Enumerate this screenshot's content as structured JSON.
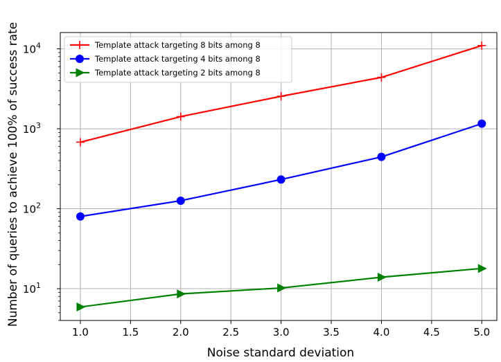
{
  "chart_data": {
    "type": "line",
    "xlabel": "Noise standard deviation",
    "ylabel": "Number of queries to achieve 100% of success rate",
    "yscale": "log",
    "x": [
      1.0,
      2.0,
      3.0,
      4.0,
      5.0
    ],
    "xlim": [
      0.8,
      5.15
    ],
    "ylim": [
      4,
      16000
    ],
    "xticks": [
      "1.0",
      "1.5",
      "2.0",
      "2.5",
      "3.0",
      "3.5",
      "4.0",
      "4.5",
      "5.0"
    ],
    "yticks": [
      {
        "value": 10,
        "base": "10",
        "exp": "1"
      },
      {
        "value": 100,
        "base": "10",
        "exp": "2"
      },
      {
        "value": 1000,
        "base": "10",
        "exp": "3"
      },
      {
        "value": 10000,
        "base": "10",
        "exp": "4"
      }
    ],
    "grid": true,
    "legend_position": "top-left",
    "series": [
      {
        "name": "Template attack targeting 8 bits among 8",
        "color": "#ff0000",
        "marker": "plus",
        "values": [
          680,
          1420,
          2550,
          4400,
          11000
        ]
      },
      {
        "name": "Template attack targeting 4 bits among 8",
        "color": "#0000ff",
        "marker": "circle",
        "values": [
          80,
          126,
          232,
          445,
          1160
        ]
      },
      {
        "name": "Template attack targeting 2 bits among 8",
        "color": "#008000",
        "marker": "triangle-right",
        "values": [
          5.9,
          8.6,
          10.2,
          13.9,
          17.9
        ]
      }
    ]
  }
}
